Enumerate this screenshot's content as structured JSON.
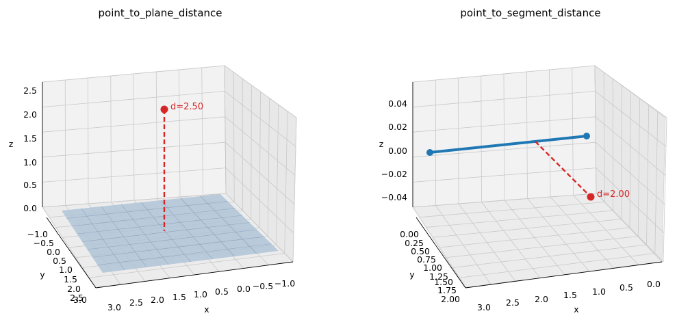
{
  "chart_data": [
    {
      "type": "3d-line",
      "title": "point_to_plane_distance",
      "xlabel": "x",
      "ylabel": "y",
      "zlabel": "z",
      "x_ticks": [
        "3.0",
        "2.5",
        "2.0",
        "1.5",
        "1.0",
        "0.5",
        "0.0",
        "−0.5",
        "−1.0"
      ],
      "y_ticks": [
        "−1.0",
        "−0.5",
        "0.0",
        "0.5",
        "1.0",
        "1.5",
        "2.0",
        "2.5",
        "3.0"
      ],
      "z_ticks": [
        "0.0",
        "0.5",
        "1.0",
        "1.5",
        "2.0",
        "2.5"
      ],
      "xlim": [
        -1.0,
        3.0
      ],
      "ylim": [
        -1.0,
        3.0
      ],
      "zlim": [
        0.0,
        2.5
      ],
      "plane": {
        "z": 0,
        "x_range": [
          -1,
          3
        ],
        "y_range": [
          -1,
          3
        ],
        "color": "#b0c4d8"
      },
      "point": {
        "x": 1.0,
        "y": 1.0,
        "z": 2.5,
        "color": "#d62728"
      },
      "foot": {
        "x": 1.0,
        "y": 1.0,
        "z": 0.0
      },
      "annotation": "d=2.50",
      "grid": true
    },
    {
      "type": "3d-line",
      "title": "point_to_segment_distance",
      "xlabel": "x",
      "ylabel": "y",
      "zlabel": "z",
      "x_ticks": [
        "3.0",
        "2.5",
        "2.0",
        "1.5",
        "1.0",
        "0.5",
        "0.0"
      ],
      "y_ticks": [
        "0.00",
        "0.25",
        "0.50",
        "0.75",
        "1.00",
        "1.25",
        "1.50",
        "1.75",
        "2.00"
      ],
      "z_ticks": [
        "0.04",
        "0.02",
        "0.00",
        "−0.02",
        "−0.04"
      ],
      "xlim": [
        0.0,
        3.0
      ],
      "ylim": [
        0.0,
        2.0
      ],
      "zlim": [
        -0.05,
        0.05
      ],
      "segment": {
        "start": {
          "x": 0,
          "y": 0,
          "z": 0
        },
        "end": {
          "x": 3,
          "y": 0,
          "z": 0
        },
        "color": "#1f77b4"
      },
      "point": {
        "x": 1.5,
        "y": 2.0,
        "z": 0.0,
        "color": "#d62728"
      },
      "closest": {
        "x": 1.5,
        "y": 0.0,
        "z": 0.0
      },
      "annotation": "d=2.00",
      "grid": true
    }
  ]
}
